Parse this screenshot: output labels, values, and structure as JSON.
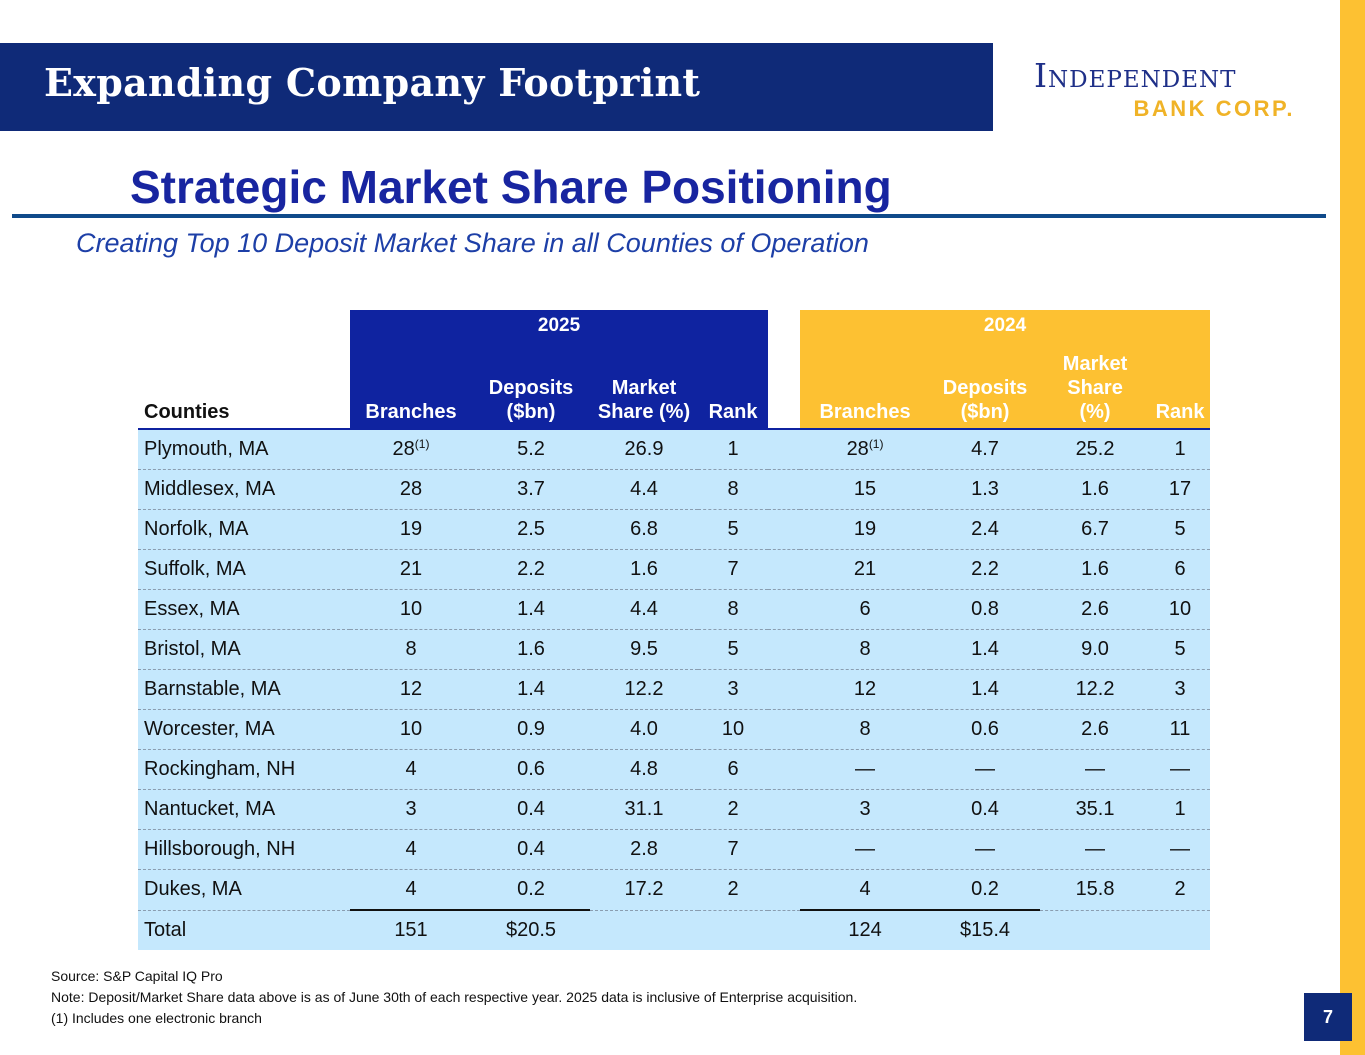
{
  "header": {
    "title": "Expanding Company Footprint"
  },
  "logo": {
    "main": "Independent",
    "sub": "BANK CORP."
  },
  "slide": {
    "heading": "Strategic Market Share Positioning",
    "subtitle": "Creating Top 10 Deposit Market Share in all Counties of Operation"
  },
  "table": {
    "year_2025": "2025",
    "year_2024": "2024",
    "headers": {
      "counties": "Counties",
      "b25": "Branches",
      "d25_1": "Deposits",
      "d25_2": "($bn)",
      "m25_1": "Market",
      "m25_2": "Share (%)",
      "r25": "Rank",
      "b24": "Branches",
      "d24_1": "Deposits",
      "d24_2": "($bn)",
      "m24_1": "Market",
      "m24_2": "Share",
      "m24_3": "(%)",
      "r24": "Rank"
    },
    "footnote_mark": "(1)",
    "rows": [
      [
        "Plymouth, MA",
        "28",
        "5.2",
        "26.9",
        "1",
        "28",
        "4.7",
        "25.2",
        "1"
      ],
      [
        "Middlesex, MA",
        "28",
        "3.7",
        "4.4",
        "8",
        "15",
        "1.3",
        "1.6",
        "17"
      ],
      [
        "Norfolk, MA",
        "19",
        "2.5",
        "6.8",
        "5",
        "19",
        "2.4",
        "6.7",
        "5"
      ],
      [
        "Suffolk, MA",
        "21",
        "2.2",
        "1.6",
        "7",
        "21",
        "2.2",
        "1.6",
        "6"
      ],
      [
        "Essex, MA",
        "10",
        "1.4",
        "4.4",
        "8",
        "6",
        "0.8",
        "2.6",
        "10"
      ],
      [
        "Bristol, MA",
        "8",
        "1.6",
        "9.5",
        "5",
        "8",
        "1.4",
        "9.0",
        "5"
      ],
      [
        "Barnstable, MA",
        "12",
        "1.4",
        "12.2",
        "3",
        "12",
        "1.4",
        "12.2",
        "3"
      ],
      [
        "Worcester, MA",
        "10",
        "0.9",
        "4.0",
        "10",
        "8",
        "0.6",
        "2.6",
        "11"
      ],
      [
        "Rockingham, NH",
        "4",
        "0.6",
        "4.8",
        "6",
        "—",
        "—",
        "—",
        "—"
      ],
      [
        "Nantucket, MA",
        "3",
        "0.4",
        "31.1",
        "2",
        "3",
        "0.4",
        "35.1",
        "1"
      ],
      [
        "Hillsborough, NH",
        "4",
        "0.4",
        "2.8",
        "7",
        "—",
        "—",
        "—",
        "—"
      ],
      [
        "Dukes, MA",
        "4",
        "0.2",
        "17.2",
        "2",
        "4",
        "0.2",
        "15.8",
        "2"
      ]
    ],
    "total": {
      "label": "Total",
      "b25": "151",
      "d25": "$20.5",
      "b24": "124",
      "d24": "$15.4"
    }
  },
  "notes": {
    "source": "Source: S&P Capital IQ Pro",
    "note": "Note:  Deposit/Market Share data above is as of June 30th of each respective year. 2025 data is inclusive of Enterprise acquisition.",
    "footnote": "(1) Includes one electronic branch"
  },
  "page_number": "7",
  "colors": {
    "navy": "#0f2a78",
    "gold": "#fdc132",
    "table_blue": "#c5e8fd"
  }
}
